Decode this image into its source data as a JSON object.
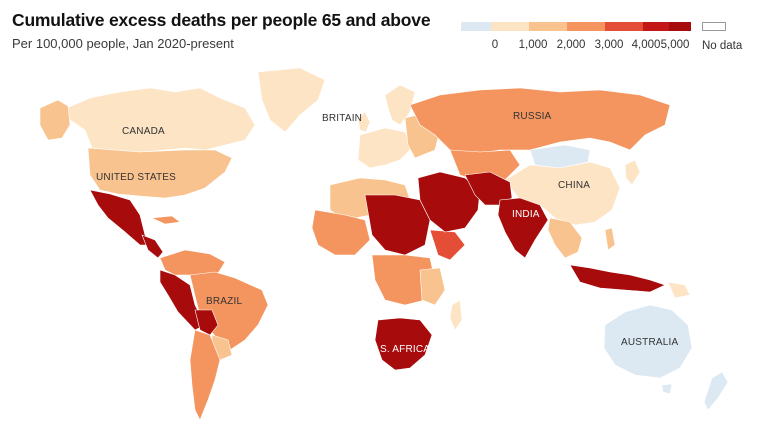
{
  "header": {
    "title": "Cumulative excess deaths per people 65 and above",
    "subtitle": "Per 100,000 people, Jan 2020-present"
  },
  "legend": {
    "ticks": [
      "0",
      "1,000",
      "2,000",
      "3,000",
      "4,000",
      "5,000"
    ],
    "nodata_label": "No data",
    "colors": [
      "#dce9f3",
      "#fde4c4",
      "#f8c38e",
      "#f4955f",
      "#e44e37",
      "#c41818",
      "#a80b0b"
    ]
  },
  "map_labels": {
    "canada": "CANADA",
    "united_states": "UNITED STATES",
    "brazil": "BRAZIL",
    "britain": "BRITAIN",
    "russia": "RUSSIA",
    "china": "CHINA",
    "india": "INDIA",
    "south_africa": "S. AFRICA",
    "australia": "AUSTRALIA"
  },
  "colors": {
    "negative": "#dce9f3",
    "very_light": "#fde4c4",
    "light": "#f8c38e",
    "medium": "#f4955f",
    "high": "#e44e37",
    "very_high": "#c41818",
    "max": "#a80b0b"
  }
}
